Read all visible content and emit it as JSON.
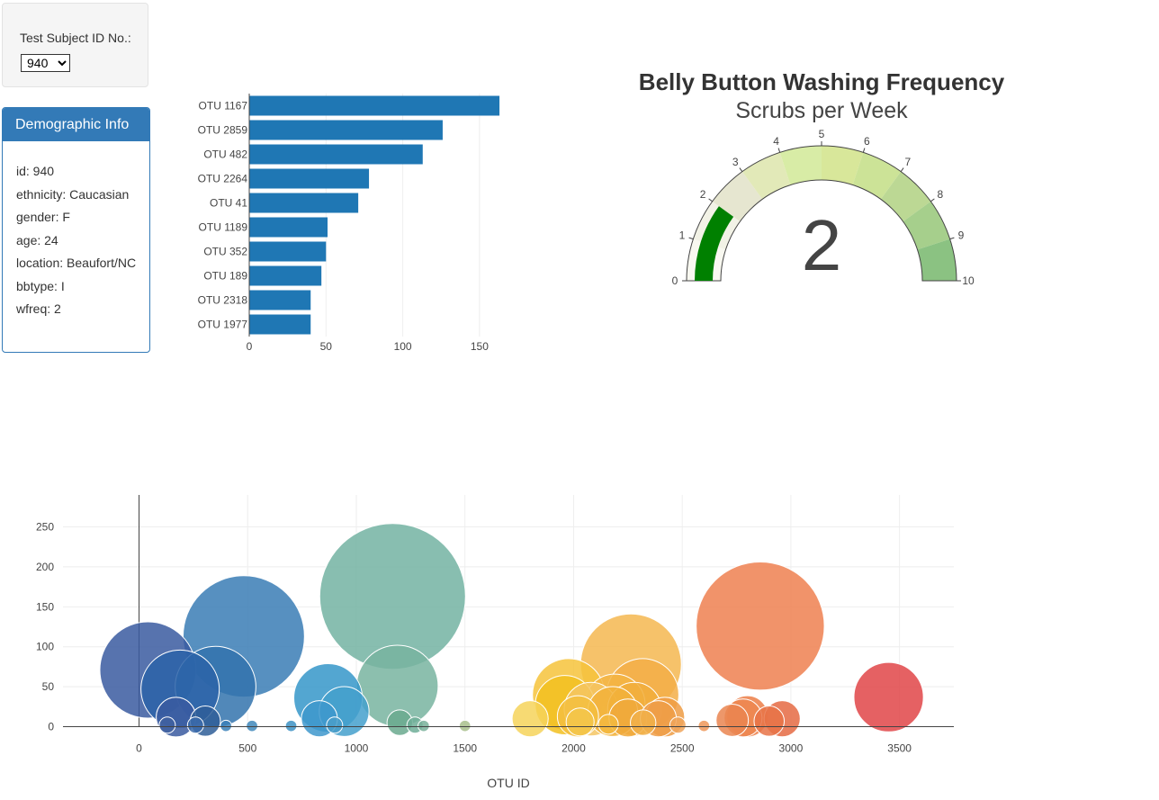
{
  "selector": {
    "label": "Test Subject ID No.:",
    "selected": "940"
  },
  "demographics": {
    "title": "Demographic Info",
    "rows": [
      "id: 940",
      "ethnicity: Caucasian",
      "gender: F",
      "age: 24",
      "location: Beaufort/NC",
      "bbtype: I",
      "wfreq: 2"
    ]
  },
  "colors": {
    "bar": "#1f77b4",
    "panel": "#337ab7",
    "gauge_needle": "#008000"
  },
  "bar_chart": {
    "type": "bar",
    "orientation": "horizontal",
    "categories": [
      "OTU 1167",
      "OTU 2859",
      "OTU 482",
      "OTU 2264",
      "OTU 41",
      "OTU 1189",
      "OTU 352",
      "OTU 189",
      "OTU 2318",
      "OTU 1977"
    ],
    "values": [
      163,
      126,
      113,
      78,
      71,
      51,
      50,
      47,
      40,
      40
    ],
    "xticks": [
      0,
      50,
      100,
      150
    ],
    "xlim": [
      0,
      170
    ]
  },
  "gauge": {
    "title": "Belly Button Washing Frequency",
    "subtitle": "Scrubs per Week",
    "value": 2,
    "min": 0,
    "max": 10,
    "ticks": [
      "0",
      "1",
      "2",
      "3",
      "4",
      "5",
      "6",
      "7",
      "8",
      "9",
      "10"
    ],
    "step_colors": [
      "#f8f8f0",
      "#f2f2e6",
      "#e6e6d0",
      "#e2e9b8",
      "#d8eca6",
      "#d8e79a",
      "#cce397",
      "#bcd894",
      "#a6cf8c",
      "#8bc282"
    ]
  },
  "chart_data": {
    "type": "scatter",
    "marker": "bubble",
    "xlabel": "OTU ID",
    "xlim": [
      -350,
      3750
    ],
    "ylim": [
      -5,
      290
    ],
    "xticks": [
      0,
      500,
      1000,
      1500,
      2000,
      2500,
      3000,
      3500
    ],
    "yticks": [
      0,
      50,
      100,
      150,
      200,
      250
    ],
    "points": [
      {
        "x": 41,
        "y": 71,
        "c": "#3a5aa0"
      },
      {
        "x": 189,
        "y": 47,
        "c": "#2c63a8"
      },
      {
        "x": 352,
        "y": 50,
        "c": "#3373ad"
      },
      {
        "x": 482,
        "y": 113,
        "c": "#3a7cb5"
      },
      {
        "x": 870,
        "y": 36,
        "c": "#3597c9"
      },
      {
        "x": 944,
        "y": 19,
        "c": "#44a0cc"
      },
      {
        "x": 1167,
        "y": 163,
        "c": "#73b3a2"
      },
      {
        "x": 1189,
        "y": 51,
        "c": "#78b4a0"
      },
      {
        "x": 1977,
        "y": 40,
        "c": "#f6c33b"
      },
      {
        "x": 2264,
        "y": 78,
        "c": "#f4b750"
      },
      {
        "x": 2318,
        "y": 40,
        "c": "#f3ae46"
      },
      {
        "x": 2859,
        "y": 126,
        "c": "#ee8050"
      },
      {
        "x": 3450,
        "y": 37,
        "c": "#e04548"
      },
      {
        "x": 1960,
        "y": 27,
        "c": "#f2c020"
      },
      {
        "x": 2080,
        "y": 22,
        "c": "#f4c563"
      },
      {
        "x": 2190,
        "y": 28,
        "c": "#f3b543"
      },
      {
        "x": 2280,
        "y": 22,
        "c": "#f1ae3c"
      },
      {
        "x": 2180,
        "y": 19,
        "c": "#f2b23a"
      },
      {
        "x": 2020,
        "y": 13,
        "c": "#f3be40"
      },
      {
        "x": 2250,
        "y": 11,
        "c": "#f0a93c"
      },
      {
        "x": 2420,
        "y": 12,
        "c": "#ef9c44"
      },
      {
        "x": 2390,
        "y": 10,
        "c": "#ee9e48"
      },
      {
        "x": 2800,
        "y": 13,
        "c": "#ec7e46"
      },
      {
        "x": 2780,
        "y": 11,
        "c": "#ed8650"
      },
      {
        "x": 2960,
        "y": 10,
        "c": "#e56a43"
      },
      {
        "x": 2730,
        "y": 8,
        "c": "#ea8550"
      },
      {
        "x": 2900,
        "y": 7,
        "c": "#e77346"
      },
      {
        "x": 1800,
        "y": 10,
        "c": "#f6d45a"
      },
      {
        "x": 170,
        "y": 12,
        "c": "#3a5aa0"
      },
      {
        "x": 830,
        "y": 10,
        "c": "#3e98cc"
      },
      {
        "x": 305,
        "y": 7,
        "c": "#2f5e98"
      },
      {
        "x": 1200,
        "y": 5,
        "c": "#6aa98e"
      },
      {
        "x": 2030,
        "y": 6,
        "c": "#f3c54a"
      },
      {
        "x": 2320,
        "y": 5,
        "c": "#f1b04a"
      },
      {
        "x": 130,
        "y": 2,
        "c": "#4060a0"
      },
      {
        "x": 260,
        "y": 2,
        "c": "#3a6aaa"
      },
      {
        "x": 400,
        "y": 1,
        "c": "#3a80b8"
      },
      {
        "x": 520,
        "y": 1,
        "c": "#4088bb"
      },
      {
        "x": 700,
        "y": 1,
        "c": "#3d92c4"
      },
      {
        "x": 900,
        "y": 2,
        "c": "#4a9dc9"
      },
      {
        "x": 1270,
        "y": 2,
        "c": "#6eae98"
      },
      {
        "x": 1310,
        "y": 1,
        "c": "#78b09a"
      },
      {
        "x": 1500,
        "y": 1,
        "c": "#a8c08c"
      },
      {
        "x": 2160,
        "y": 3,
        "c": "#f3b840"
      },
      {
        "x": 2480,
        "y": 2,
        "c": "#f0a55a"
      },
      {
        "x": 2600,
        "y": 1,
        "c": "#ee9658"
      }
    ]
  }
}
